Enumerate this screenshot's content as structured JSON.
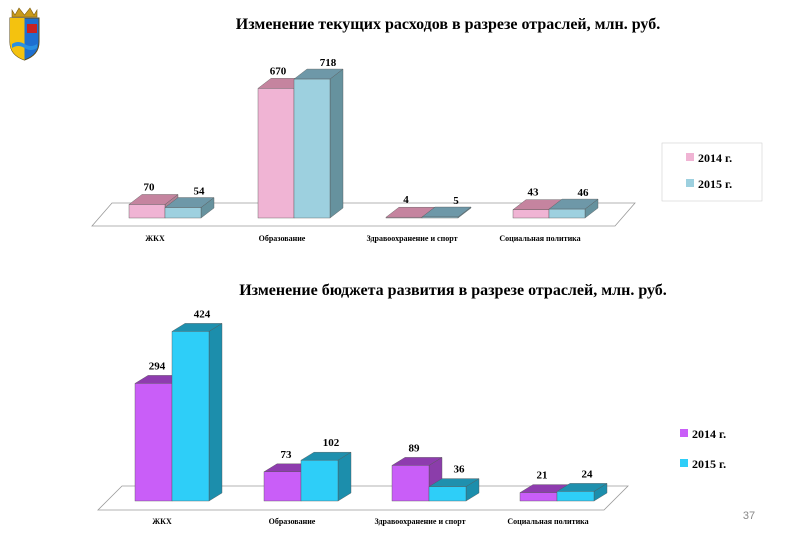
{
  "page_number": "37",
  "colors": {
    "top_2014_front": "#F0B4D4",
    "top_2014_top": "#C5849F",
    "top_2014_side": "#B08396",
    "top_2015_front": "#9DD0DF",
    "top_2015_top": "#6E98A8",
    "top_2015_side": "#66929E",
    "bot_2014_front": "#C95EF8",
    "bot_2014_top": "#8E3CAE",
    "bot_2014_side": "#8B3DAA",
    "bot_2015_front": "#2ECEF8",
    "bot_2015_top": "#1F90AE",
    "bot_2015_side": "#1C8EAC",
    "floor": "#FFFFFF",
    "floor_stroke": "#9A9A9A"
  },
  "chart_data": [
    {
      "type": "bar",
      "title": "Изменение текущих расходов в разрезе отраслей, млн. руб.",
      "categories": [
        "ЖКХ",
        "Образование",
        "Здравоохранение и спорт",
        "Социальная политика"
      ],
      "series": [
        {
          "name": "2014 г.",
          "values": [
            70,
            670,
            4,
            43
          ]
        },
        {
          "name": "2015 г.",
          "values": [
            54,
            718,
            5,
            46
          ]
        }
      ],
      "legend_position": "right",
      "grid": false
    },
    {
      "type": "bar",
      "title": "Изменение бюджета развития в разрезе отраслей, млн. руб.",
      "categories": [
        "ЖКХ",
        "Образование",
        "Здравоохранение и спорт",
        "Социальная политика"
      ],
      "series": [
        {
          "name": "2014 г.",
          "values": [
            294,
            73,
            89,
            21
          ]
        },
        {
          "name": "2015 г.",
          "values": [
            424,
            102,
            36,
            24
          ]
        }
      ],
      "legend_position": "right",
      "grid": false
    }
  ]
}
